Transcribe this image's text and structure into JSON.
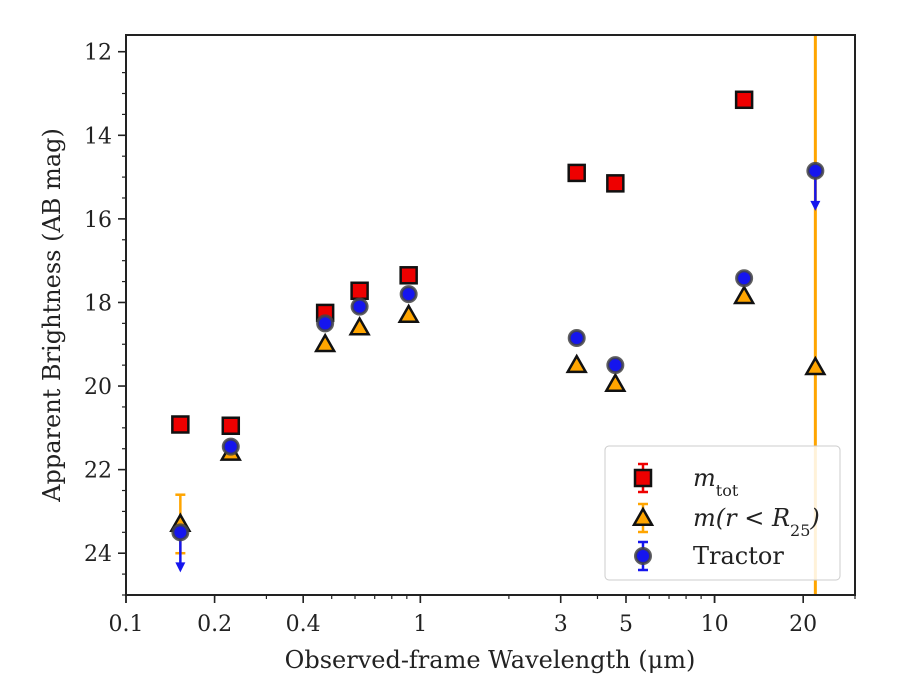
{
  "chart_data": {
    "type": "scatter",
    "xlabel": "Observed-frame Wavelength (μm)",
    "ylabel": "Apparent Brightness (AB mag)",
    "x_scale": "log",
    "xlim": [
      0.1,
      30
    ],
    "ylim": [
      25,
      11.6
    ],
    "y_inverted": true,
    "x_ticks": [
      {
        "value": 0.1,
        "label": "0.1"
      },
      {
        "value": 0.2,
        "label": "0.2"
      },
      {
        "value": 0.4,
        "label": "0.4"
      },
      {
        "value": 1,
        "label": "1"
      },
      {
        "value": 3,
        "label": "3"
      },
      {
        "value": 5,
        "label": "5"
      },
      {
        "value": 10,
        "label": "10"
      },
      {
        "value": 20,
        "label": "20"
      }
    ],
    "y_ticks": [
      {
        "value": 12,
        "label": "12"
      },
      {
        "value": 14,
        "label": "14"
      },
      {
        "value": 16,
        "label": "16"
      },
      {
        "value": 18,
        "label": "18"
      },
      {
        "value": 20,
        "label": "20"
      },
      {
        "value": 22,
        "label": "22"
      },
      {
        "value": 24,
        "label": "24"
      }
    ],
    "grid": false,
    "legend_position": "bottom-right",
    "vertical_line": {
      "x": 22,
      "color": "#ffa500"
    },
    "series": [
      {
        "name": "m_tot",
        "label_main": "m",
        "label_sub": "tot",
        "marker": "square",
        "color": "#ee0000",
        "edge": "#111111",
        "points": [
          {
            "x": 0.153,
            "y": 20.92
          },
          {
            "x": 0.227,
            "y": 20.95
          },
          {
            "x": 0.475,
            "y": 18.25
          },
          {
            "x": 0.622,
            "y": 17.72
          },
          {
            "x": 0.913,
            "y": 17.35
          },
          {
            "x": 3.4,
            "y": 14.9
          },
          {
            "x": 4.6,
            "y": 15.15
          },
          {
            "x": 12.6,
            "y": 13.15
          }
        ]
      },
      {
        "name": "m(r < R25)",
        "label_main": "m(r < R",
        "label_sub": "25",
        "label_tail": ")",
        "marker": "triangle",
        "color": "#ffa500",
        "edge": "#111111",
        "points": [
          {
            "x": 0.153,
            "y": 23.3,
            "yerr_low": 0.7,
            "yerr_high": 0.7
          },
          {
            "x": 0.227,
            "y": 21.6
          },
          {
            "x": 0.475,
            "y": 19.0
          },
          {
            "x": 0.622,
            "y": 18.6
          },
          {
            "x": 0.913,
            "y": 18.3
          },
          {
            "x": 3.4,
            "y": 19.5
          },
          {
            "x": 4.6,
            "y": 19.95
          },
          {
            "x": 12.6,
            "y": 17.85,
            "yerr_low": 0.5,
            "yerr_high": 0
          },
          {
            "x": 22,
            "y": 19.55
          }
        ]
      },
      {
        "name": "Tractor",
        "label_main": "Tractor",
        "marker": "circle",
        "color": "#1515ee",
        "edge": "#444444",
        "points": [
          {
            "x": 0.153,
            "y": 23.5,
            "upper_limit": true
          },
          {
            "x": 0.227,
            "y": 21.45
          },
          {
            "x": 0.475,
            "y": 18.5
          },
          {
            "x": 0.622,
            "y": 18.1
          },
          {
            "x": 0.913,
            "y": 17.8
          },
          {
            "x": 3.4,
            "y": 18.85
          },
          {
            "x": 4.6,
            "y": 19.5
          },
          {
            "x": 12.6,
            "y": 17.42
          },
          {
            "x": 22,
            "y": 14.85,
            "upper_limit": true
          }
        ]
      }
    ]
  }
}
